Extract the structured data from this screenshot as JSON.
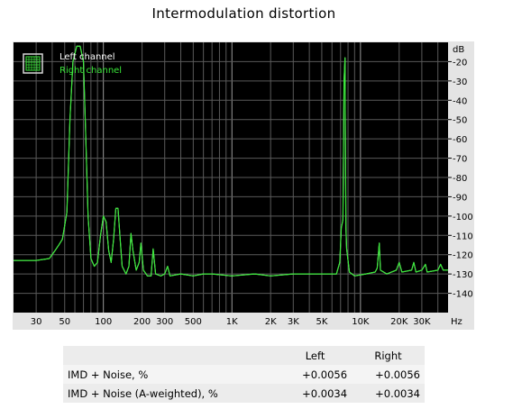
{
  "chart_data": {
    "type": "line",
    "title": "Intermodulation distortion",
    "x_scale": "log",
    "xlim": [
      20,
      48000
    ],
    "ylim": [
      -150,
      -10
    ],
    "y_unit_label": "dB",
    "x_unit_label": "Hz",
    "x_ticks": [
      {
        "v": 30,
        "label": "30"
      },
      {
        "v": 50,
        "label": "50"
      },
      {
        "v": 100,
        "label": "100"
      },
      {
        "v": 200,
        "label": "200"
      },
      {
        "v": 300,
        "label": "300"
      },
      {
        "v": 500,
        "label": "500"
      },
      {
        "v": 1000,
        "label": "1K"
      },
      {
        "v": 2000,
        "label": "2K"
      },
      {
        "v": 3000,
        "label": "3K"
      },
      {
        "v": 5000,
        "label": "5K"
      },
      {
        "v": 10000,
        "label": "10K"
      },
      {
        "v": 20000,
        "label": "20K"
      },
      {
        "v": 30000,
        "label": "30K"
      }
    ],
    "y_ticks": [
      {
        "v": -20,
        "label": "-20"
      },
      {
        "v": -30,
        "label": "-30"
      },
      {
        "v": -40,
        "label": "-40"
      },
      {
        "v": -50,
        "label": "-50"
      },
      {
        "v": -60,
        "label": "-60"
      },
      {
        "v": -70,
        "label": "-70"
      },
      {
        "v": -80,
        "label": "-80"
      },
      {
        "v": -90,
        "label": "-90"
      },
      {
        "v": -100,
        "label": "-100"
      },
      {
        "v": -110,
        "label": "-110"
      },
      {
        "v": -120,
        "label": "-120"
      },
      {
        "v": -130,
        "label": "-130"
      },
      {
        "v": -140,
        "label": "-140"
      }
    ],
    "grid": true,
    "legend_position": "top-left",
    "series": [
      {
        "name": "Left channel",
        "color": "#ffffff",
        "points": [
          [
            20,
            -123
          ],
          [
            30,
            -123
          ],
          [
            38,
            -122
          ],
          [
            42,
            -118
          ],
          [
            45,
            -115
          ],
          [
            48,
            -112
          ],
          [
            52,
            -98
          ],
          [
            55,
            -50
          ],
          [
            58,
            -20
          ],
          [
            62,
            -12
          ],
          [
            66,
            -12
          ],
          [
            70,
            -20
          ],
          [
            73,
            -60
          ],
          [
            76,
            -100
          ],
          [
            80,
            -122
          ],
          [
            85,
            -126
          ],
          [
            90,
            -124
          ],
          [
            95,
            -110
          ],
          [
            100,
            -100
          ],
          [
            105,
            -103
          ],
          [
            110,
            -118
          ],
          [
            115,
            -124
          ],
          [
            120,
            -112
          ],
          [
            125,
            -96
          ],
          [
            130,
            -96
          ],
          [
            135,
            -112
          ],
          [
            140,
            -126
          ],
          [
            150,
            -130
          ],
          [
            158,
            -126
          ],
          [
            164,
            -109
          ],
          [
            170,
            -118
          ],
          [
            180,
            -128
          ],
          [
            190,
            -124
          ],
          [
            196,
            -114
          ],
          [
            205,
            -128
          ],
          [
            220,
            -131
          ],
          [
            235,
            -131
          ],
          [
            244,
            -117
          ],
          [
            255,
            -130
          ],
          [
            280,
            -131
          ],
          [
            300,
            -130
          ],
          [
            316,
            -126
          ],
          [
            330,
            -131
          ],
          [
            400,
            -130
          ],
          [
            500,
            -131
          ],
          [
            600,
            -130
          ],
          [
            700,
            -130
          ],
          [
            1000,
            -131
          ],
          [
            1500,
            -130
          ],
          [
            2000,
            -131
          ],
          [
            3000,
            -130
          ],
          [
            5000,
            -130
          ],
          [
            6500,
            -130
          ],
          [
            6900,
            -124
          ],
          [
            7100,
            -106
          ],
          [
            7300,
            -102
          ],
          [
            7450,
            -30
          ],
          [
            7580,
            -18
          ],
          [
            7700,
            -106
          ],
          [
            7800,
            -117
          ],
          [
            8200,
            -129
          ],
          [
            9000,
            -131
          ],
          [
            11000,
            -130
          ],
          [
            13000,
            -129
          ],
          [
            13500,
            -127
          ],
          [
            14000,
            -114
          ],
          [
            14300,
            -128
          ],
          [
            16000,
            -130
          ],
          [
            19000,
            -128
          ],
          [
            20000,
            -124
          ],
          [
            21000,
            -129
          ],
          [
            25000,
            -128
          ],
          [
            26000,
            -124
          ],
          [
            27000,
            -129
          ],
          [
            30000,
            -128
          ],
          [
            32000,
            -125
          ],
          [
            33000,
            -129
          ],
          [
            40000,
            -128
          ],
          [
            42000,
            -125
          ],
          [
            44000,
            -128
          ],
          [
            48000,
            -128
          ]
        ]
      },
      {
        "name": "Right channel",
        "color": "#39e839",
        "points": [
          [
            20,
            -123
          ],
          [
            30,
            -123
          ],
          [
            38,
            -122
          ],
          [
            42,
            -118
          ],
          [
            45,
            -115
          ],
          [
            48,
            -112
          ],
          [
            52,
            -98
          ],
          [
            55,
            -50
          ],
          [
            58,
            -20
          ],
          [
            62,
            -12
          ],
          [
            66,
            -12
          ],
          [
            70,
            -20
          ],
          [
            73,
            -60
          ],
          [
            76,
            -100
          ],
          [
            80,
            -122
          ],
          [
            85,
            -126
          ],
          [
            90,
            -124
          ],
          [
            95,
            -110
          ],
          [
            100,
            -100
          ],
          [
            105,
            -103
          ],
          [
            110,
            -118
          ],
          [
            115,
            -124
          ],
          [
            120,
            -112
          ],
          [
            125,
            -96
          ],
          [
            130,
            -96
          ],
          [
            135,
            -112
          ],
          [
            140,
            -126
          ],
          [
            150,
            -130
          ],
          [
            158,
            -126
          ],
          [
            164,
            -109
          ],
          [
            170,
            -118
          ],
          [
            180,
            -128
          ],
          [
            190,
            -124
          ],
          [
            196,
            -114
          ],
          [
            205,
            -128
          ],
          [
            220,
            -131
          ],
          [
            235,
            -131
          ],
          [
            244,
            -117
          ],
          [
            255,
            -130
          ],
          [
            280,
            -131
          ],
          [
            300,
            -130
          ],
          [
            316,
            -126
          ],
          [
            330,
            -131
          ],
          [
            400,
            -130
          ],
          [
            500,
            -131
          ],
          [
            600,
            -130
          ],
          [
            700,
            -130
          ],
          [
            1000,
            -131
          ],
          [
            1500,
            -130
          ],
          [
            2000,
            -131
          ],
          [
            3000,
            -130
          ],
          [
            5000,
            -130
          ],
          [
            6500,
            -130
          ],
          [
            6900,
            -124
          ],
          [
            7100,
            -106
          ],
          [
            7300,
            -102
          ],
          [
            7450,
            -30
          ],
          [
            7580,
            -18
          ],
          [
            7700,
            -106
          ],
          [
            7800,
            -117
          ],
          [
            8200,
            -129
          ],
          [
            9000,
            -131
          ],
          [
            11000,
            -130
          ],
          [
            13000,
            -129
          ],
          [
            13500,
            -127
          ],
          [
            14000,
            -114
          ],
          [
            14300,
            -128
          ],
          [
            16000,
            -130
          ],
          [
            19000,
            -128
          ],
          [
            20000,
            -124
          ],
          [
            21000,
            -129
          ],
          [
            25000,
            -128
          ],
          [
            26000,
            -124
          ],
          [
            27000,
            -129
          ],
          [
            30000,
            -128
          ],
          [
            32000,
            -125
          ],
          [
            33000,
            -129
          ],
          [
            40000,
            -128
          ],
          [
            42000,
            -125
          ],
          [
            44000,
            -128
          ],
          [
            48000,
            -128
          ]
        ]
      }
    ],
    "table": {
      "columns": [
        "",
        "Left",
        "Right"
      ],
      "rows": [
        [
          "IMD + Noise, %",
          "+0.0056",
          "+0.0056"
        ],
        [
          "IMD + Noise (A-weighted), %",
          "+0.0034",
          "+0.0034"
        ]
      ]
    }
  }
}
